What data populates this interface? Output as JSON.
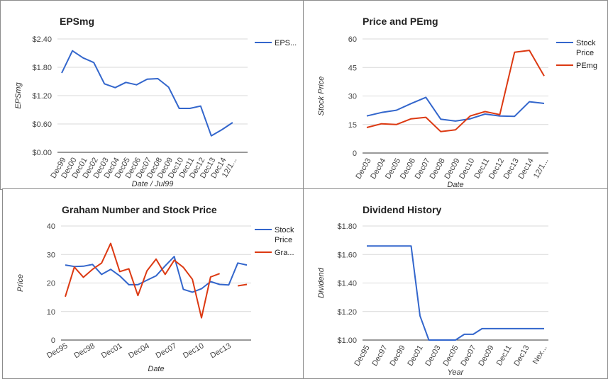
{
  "chart_data": [
    {
      "type": "line",
      "title": "EPSmg",
      "xlabel": "Date / Jul99",
      "ylabel": "EPSmg",
      "categories": [
        "Dec99",
        "Dec00",
        "Dec01",
        "Dec02",
        "Dec03",
        "Dec04",
        "Dec05",
        "Dec06",
        "Dec07",
        "Dec08",
        "Dec09",
        "Dec10",
        "Dec11",
        "Dec12",
        "Dec13",
        "Dec14",
        "12/1..."
      ],
      "x": [
        0,
        1,
        2,
        3,
        4,
        5,
        6,
        7,
        8,
        9,
        10,
        11,
        12,
        13,
        14,
        15,
        16,
        17
      ],
      "yticks": [
        "$0.00",
        "$0.60",
        "$1.20",
        "$1.80",
        "$2.40"
      ],
      "ylim": [
        0,
        2.4
      ],
      "series": [
        {
          "name": "EPS...",
          "color": "#3366cc",
          "values": [
            1.68,
            2.15,
            2.0,
            1.9,
            1.45,
            1.37,
            1.48,
            1.43,
            1.55,
            1.56,
            1.38,
            0.93,
            0.93,
            0.98,
            0.35,
            0.48,
            0.63,
            null
          ]
        }
      ]
    },
    {
      "type": "line",
      "title": "Price and PEmg",
      "xlabel": "Date",
      "ylabel": "Stock Price",
      "categories": [
        "Dec03",
        "Dec04",
        "Dec05",
        "Dec06",
        "Dec07",
        "Dec08",
        "Dec09",
        "Dec10",
        "Dec11",
        "Dec12",
        "Dec13",
        "Dec14",
        "12/1..."
      ],
      "x": [
        0,
        1,
        2,
        3,
        4,
        5,
        6,
        7,
        8,
        9,
        10,
        11,
        12
      ],
      "yticks": [
        "0",
        "15",
        "30",
        "45",
        "60"
      ],
      "ylim": [
        0,
        60
      ],
      "series": [
        {
          "name": "Stock Price",
          "color": "#3366cc",
          "values": [
            19.5,
            21.3,
            22.5,
            26.0,
            29.3,
            17.8,
            16.8,
            18.0,
            20.5,
            19.5,
            19.3,
            27.0,
            26.1
          ]
        },
        {
          "name": "PEmg",
          "color": "#dc3912",
          "values": [
            13.4,
            15.4,
            15.0,
            18.0,
            18.8,
            11.3,
            12.2,
            19.5,
            21.8,
            20.2,
            53.0,
            54.0,
            40.5
          ]
        }
      ]
    },
    {
      "type": "line",
      "title": "Graham Number and Stock Price",
      "xlabel": "Date",
      "ylabel": "Price",
      "categories": [
        "Dec95",
        "Dec98",
        "Dec01",
        "Dec04",
        "Dec07",
        "Dec10",
        "Dec13"
      ],
      "x": [
        0,
        1,
        2,
        3,
        4,
        5,
        6,
        7,
        8,
        9,
        10,
        11,
        12,
        13,
        14,
        15,
        16,
        17,
        18,
        19,
        20
      ],
      "yticks": [
        "0",
        "10",
        "20",
        "30",
        "40"
      ],
      "ylim": [
        0,
        40
      ],
      "series": [
        {
          "name": "Stock Price",
          "color": "#3366cc",
          "values": [
            26.3,
            25.8,
            25.9,
            26.5,
            23.0,
            24.8,
            22.5,
            19.4,
            19.4,
            21.0,
            22.5,
            26.0,
            29.3,
            17.8,
            16.8,
            18.0,
            20.5,
            19.5,
            19.3,
            27.0,
            26.3
          ]
        },
        {
          "name": "Gra...",
          "color": "#dc3912",
          "values": [
            15.2,
            25.6,
            22.0,
            24.8,
            27.0,
            33.9,
            24.0,
            25.0,
            15.6,
            24.3,
            28.4,
            23.0,
            28.0,
            25.5,
            21.3,
            7.8,
            22.1,
            23.3,
            null,
            19.0,
            19.5
          ]
        }
      ]
    },
    {
      "type": "line",
      "title": "Dividend History",
      "xlabel": "Year",
      "ylabel": "Dividend",
      "categories": [
        "Dec95",
        "Dec97",
        "Dec99",
        "Dec01",
        "Dec03",
        "Dec05",
        "Dec07",
        "Dec09",
        "Dec11",
        "Dec13",
        "Nex..."
      ],
      "x": [
        0,
        1,
        2,
        3,
        4,
        5,
        6,
        7,
        8,
        9,
        10,
        11,
        12,
        13,
        14,
        15,
        16,
        17,
        18,
        19,
        20
      ],
      "yticks": [
        "$1.00",
        "$1.20",
        "$1.40",
        "$1.60",
        "$1.80"
      ],
      "ylim": [
        1.0,
        1.8
      ],
      "series": [
        {
          "name": "",
          "color": "#3366cc",
          "values": [
            1.66,
            1.66,
            1.66,
            1.66,
            1.66,
            1.66,
            1.17,
            1.0,
            1.0,
            1.0,
            1.0,
            1.04,
            1.04,
            1.08,
            1.08,
            1.08,
            1.08,
            1.08,
            1.08,
            1.08,
            1.08
          ]
        }
      ]
    }
  ]
}
